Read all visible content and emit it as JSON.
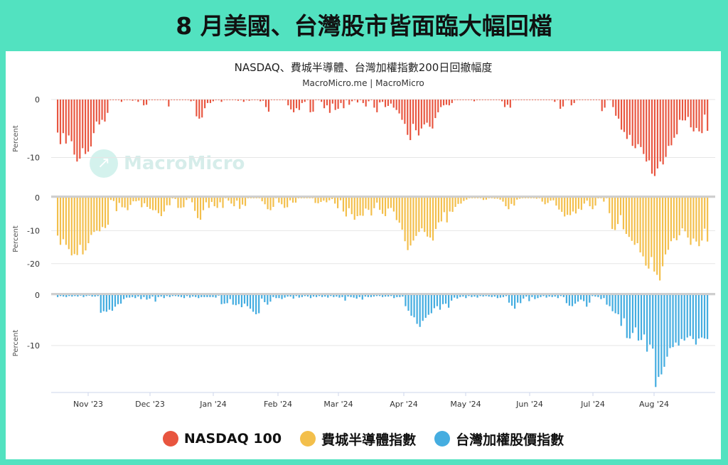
{
  "banner": {
    "title": "8 月美國、台灣股市皆面臨大幅回檔"
  },
  "chart_header": {
    "title": "NASDAQ、費城半導體、台灣加權指數200日回撤幅度",
    "source": "MacroMicro.me | MacroMicro"
  },
  "watermark": {
    "text": "MacroMicro"
  },
  "colors": {
    "nasdaq": "#e8553f",
    "sox": "#f3bf4b",
    "taiex": "#45ade0",
    "background": "#52e2c0"
  },
  "legend": [
    {
      "label": "NASDAQ 100",
      "color": "#e8553f"
    },
    {
      "label": "費城半導體指數",
      "color": "#f3bf4b"
    },
    {
      "label": "台灣加權股價指數",
      "color": "#45ade0"
    }
  ],
  "chart_data": {
    "type": "bar",
    "x_tick_labels": [
      "Nov '23",
      "Dec '23",
      "Jan '24",
      "Feb '24",
      "Mar '24",
      "Apr '24",
      "May '24",
      "Jun '24",
      "Jul '24",
      "Aug '24"
    ],
    "x_range": [
      "2023-10-13",
      "2024-08-30"
    ],
    "panels": [
      {
        "series_name": "NASDAQ 100",
        "ylabel": "Percent",
        "ylim": [
          -13.5,
          0
        ],
        "ytick_labels": [
          "0",
          "-10"
        ],
        "ytick_values": [
          0,
          -10
        ],
        "values": [
          -5.7,
          -7.7,
          -5.8,
          -7.6,
          -6.2,
          -7.2,
          -9.5,
          -10.7,
          -10.2,
          -8.4,
          -9.4,
          -9.0,
          -8.1,
          -5.8,
          -3.8,
          -4.3,
          -3.5,
          -3.8,
          -2.3,
          0,
          0,
          0,
          0,
          -0.4,
          0,
          0,
          0,
          -0.2,
          0,
          -0.4,
          0,
          -1.0,
          -0.9,
          0,
          0,
          0,
          0,
          0,
          0,
          0,
          -1.2,
          0,
          0,
          0,
          0,
          0,
          0,
          0,
          -0.3,
          -0.2,
          -2.9,
          -3.3,
          -3.1,
          -1.5,
          -0.6,
          -0.6,
          -0.3,
          0,
          0,
          -0.4,
          0,
          0,
          0,
          0,
          0,
          -0.2,
          0,
          -0.4,
          0,
          -0.2,
          0,
          0,
          -0.1,
          -0.3,
          -0.2,
          -1.3,
          -2.1,
          0,
          0,
          0,
          0,
          0,
          0,
          -1.0,
          -1.7,
          -2.2,
          -1.5,
          -1.8,
          -0.6,
          -0.4,
          0,
          -2.2,
          -2.1,
          -0.1,
          0,
          -0.4,
          -1.5,
          -1.0,
          -2.3,
          -0.7,
          -1.8,
          -1.6,
          -0.6,
          -1.5,
          0,
          -0.9,
          -0.3,
          0,
          -0.5,
          0,
          -0.6,
          -1.2,
          -0.3,
          0,
          -1.4,
          -2.2,
          -0.5,
          -0.4,
          -1.3,
          -1.1,
          -0.7,
          -1.4,
          -1.8,
          -2.4,
          -3.5,
          -4.2,
          -6.1,
          -7.0,
          -4.2,
          -5.3,
          -6.2,
          -5.0,
          -4.3,
          -4.0,
          -4.7,
          -5.0,
          -3.2,
          -2.2,
          -1.3,
          -1.0,
          -0.9,
          -1.0,
          -0.6,
          0,
          0,
          0,
          0,
          0,
          0,
          0,
          -0.3,
          0,
          0,
          0,
          0,
          0,
          0,
          0,
          0,
          0,
          -0.3,
          -1.3,
          -0.9,
          -1.4,
          0,
          0,
          0,
          0,
          0,
          0,
          0,
          0,
          0,
          0,
          0,
          0,
          0,
          0,
          0,
          -0.4,
          0,
          -1.6,
          -1.2,
          0,
          0,
          -1.0,
          -0.6,
          0,
          0,
          0,
          0,
          0,
          0,
          0,
          0,
          0,
          -2.0,
          -1.4,
          0,
          0,
          -1.3,
          -2.8,
          -3.3,
          -5.2,
          -5.6,
          -6.8,
          -6.1,
          -8.0,
          -8.4,
          -7.7,
          -8.2,
          -9.4,
          -10.7,
          -10.5,
          -12.8,
          -13.2,
          -11.9,
          -10.7,
          -11.2,
          -9.9,
          -8.0,
          -7.9,
          -6.6,
          -6.0,
          -3.5,
          -3.6,
          -3.6,
          -3.0,
          -4.8,
          -5.5,
          -4.9,
          -5.5,
          -5.8,
          -2.6,
          -5.4
        ]
      },
      {
        "series_name": "費城半導體指數",
        "ylabel": "Percent",
        "ylim": [
          -25,
          0
        ],
        "ytick_labels": [
          "0",
          "-10",
          "-20"
        ],
        "ytick_values": [
          0,
          -10,
          -20
        ],
        "values": [
          -11.5,
          -14.3,
          -12.6,
          -14.3,
          -15.6,
          -17.5,
          -17.1,
          -17.4,
          -14.3,
          -17.2,
          -16.0,
          -13.8,
          -11.3,
          -10.4,
          -10.0,
          -10.2,
          -8.9,
          -9.2,
          -8.2,
          -0.7,
          -1.0,
          -4.1,
          -1.6,
          -2.9,
          -3.0,
          -3.8,
          -2.2,
          -1.1,
          -1.1,
          -0.9,
          -2.9,
          -1.7,
          -2.8,
          -3.4,
          -3.8,
          -3.8,
          -4.7,
          -5.6,
          -4.2,
          -2.3,
          -2.3,
          -0.2,
          -0.4,
          -3.1,
          -3.1,
          -2.9,
          -0.7,
          -0.1,
          -1.4,
          -4.0,
          -6.2,
          -6.7,
          -3.8,
          -1.4,
          -3.1,
          -1.3,
          -2.6,
          -3.1,
          -1.4,
          -3.1,
          0,
          -0.9,
          -1.8,
          -2.6,
          -0.9,
          -3.4,
          -2.1,
          -2.5,
          0,
          0,
          0,
          0,
          0,
          -1.1,
          -2.0,
          -3.5,
          -3.8,
          -2.8,
          0,
          -1.5,
          -2.0,
          -3.1,
          -2.9,
          -0.8,
          -1.5,
          -1.5,
          0,
          0,
          0,
          0,
          0,
          0,
          -1.6,
          -1.7,
          -1.3,
          -0.9,
          -1.4,
          -0.8,
          -0.4,
          -1.8,
          -3.2,
          -0.8,
          -4.2,
          -5.7,
          -3.2,
          -5.0,
          -6.7,
          -5.6,
          -5.4,
          -5.5,
          -3.3,
          -3.7,
          -5.4,
          -3.2,
          -1.5,
          -3.7,
          -4.9,
          -5.6,
          -3.3,
          -3.1,
          -4.2,
          -6.8,
          -7.6,
          -9.7,
          -13.2,
          -15.9,
          -14.5,
          -13.0,
          -11.6,
          -10.4,
          -9.3,
          -10.4,
          -11.8,
          -12.1,
          -13.0,
          -9.5,
          -7.5,
          -7.2,
          -4.4,
          -7.5,
          -4.2,
          -4.3,
          -2.8,
          -1.9,
          -1.8,
          -1.0,
          -0.6,
          0,
          0,
          0,
          0,
          0,
          -0.7,
          -0.6,
          0,
          0,
          -0.3,
          -0.3,
          -0.6,
          -1.2,
          -2.6,
          -3.5,
          -1.9,
          -2.4,
          -0.6,
          -0.3,
          0,
          0,
          0,
          0,
          0,
          -0.3,
          0,
          -1.2,
          -2.0,
          -1.6,
          -0.9,
          -0.8,
          -2.4,
          -3.6,
          -4.3,
          -5.7,
          -5.2,
          -5.3,
          -4.2,
          -4.8,
          -3.4,
          -3.7,
          -1.8,
          -0.9,
          -2.6,
          -3.5,
          -2.4,
          -0.2,
          0,
          -1.2,
          0,
          -4.7,
          -9.5,
          -9.8,
          -8.0,
          -5.3,
          -9.6,
          -11.0,
          -11.9,
          -13.1,
          -14.3,
          -13.8,
          -16.6,
          -17.8,
          -20.6,
          -21.5,
          -18.0,
          -22.4,
          -23.4,
          -25.1,
          -20.8,
          -17.2,
          -15.8,
          -13.2,
          -12.3,
          -12.9,
          -11.4,
          -9.3,
          -10.2,
          -12.1,
          -14.3,
          -12.4,
          -13.3,
          -14.7,
          -13.0,
          -9.4,
          -13.3
        ]
      },
      {
        "series_name": "台灣加權股價指數",
        "ylabel": "Percent",
        "ylim": [
          -19,
          0
        ],
        "ytick_labels": [
          "0",
          "-10"
        ],
        "ytick_values": [
          0,
          -10
        ],
        "values": [
          -0.4,
          -0.2,
          -0.3,
          -0.4,
          -0.2,
          -0.3,
          -0.2,
          -0.3,
          -0.1,
          -0.4,
          -0.2,
          -0.1,
          -0.3,
          -0.3,
          -0.2,
          -3.5,
          -3.2,
          -3.3,
          -2.9,
          -3.1,
          -2.3,
          -1.8,
          -1.7,
          -0.8,
          -0.5,
          -0.5,
          -0.4,
          -0.6,
          -0.3,
          -0.8,
          -0.4,
          -0.9,
          -0.7,
          -0.3,
          -1.3,
          -0.4,
          -0.3,
          -0.6,
          -0.2,
          -0.4,
          -0.2,
          -0.2,
          -0.3,
          -0.4,
          -0.6,
          -0.2,
          -0.5,
          -0.3,
          -0.4,
          -0.6,
          -0.4,
          -0.4,
          -0.4,
          -0.4,
          -0.4,
          -0.5,
          -0.1,
          -1.8,
          -1.7,
          -1.6,
          -0.8,
          -1.9,
          -2.0,
          -1.8,
          -2.4,
          -1.7,
          -2.2,
          -2.7,
          -3.3,
          -3.8,
          -3.6,
          -0.7,
          -1.4,
          -1.9,
          -1.3,
          -0.4,
          -0.6,
          -0.6,
          -0.8,
          -0.5,
          -0.3,
          -0.3,
          -0.7,
          -0.2,
          -0.5,
          -0.4,
          -0.2,
          -0.3,
          -0.6,
          -0.3,
          -0.4,
          -0.2,
          -0.4,
          -0.3,
          -0.5,
          -0.2,
          -0.4,
          -0.3,
          -0.5,
          -0.4,
          -1.1,
          -0.3,
          -0.4,
          -0.5,
          -0.7,
          -0.4,
          -0.9,
          -0.3,
          -0.4,
          -0.4,
          -0.3,
          -0.2,
          -0.2,
          -0.4,
          -0.3,
          -0.3,
          -0.2,
          -0.6,
          -0.4,
          -0.4,
          -0.3,
          -2.2,
          -3.1,
          -4.1,
          -4.4,
          -5.7,
          -6.3,
          -5.1,
          -4.5,
          -3.9,
          -3.6,
          -2.6,
          -2.2,
          -2.9,
          -1.8,
          -1.7,
          -2.5,
          -1.1,
          -0.5,
          -0.7,
          -0.4,
          -0.3,
          -0.6,
          -0.2,
          -0.4,
          -0.3,
          -0.5,
          -0.2,
          -0.3,
          -0.2,
          -0.3,
          -0.4,
          -0.3,
          -0.6,
          -0.5,
          -0.4,
          -0.2,
          -1.5,
          -2.1,
          -2.7,
          -1.5,
          -1.6,
          -0.7,
          -0.3,
          -1.2,
          -0.4,
          -0.8,
          -0.6,
          -0.4,
          -0.2,
          -0.5,
          -0.3,
          -0.4,
          -0.3,
          -0.6,
          -0.2,
          -0.4,
          -1.6,
          -2.1,
          -2.2,
          -1.7,
          -1.3,
          -0.9,
          -1.2,
          -2.3,
          -1.5,
          -0.2,
          -0.3,
          -0.4,
          -0.8,
          -0.6,
          -1.9,
          -2.2,
          -3.2,
          -3.6,
          -3.8,
          -6.1,
          -4.6,
          -8.5,
          -8.6,
          -7.5,
          -6.4,
          -9.0,
          -8.9,
          -7.8,
          -11.2,
          -9.8,
          -10.6,
          -18.2,
          -16.2,
          -15.7,
          -14.2,
          -12.2,
          -10.5,
          -10.3,
          -9.4,
          -10.0,
          -8.7,
          -9.0,
          -8.4,
          -8.1,
          -8.7,
          -9.8,
          -8.6,
          -8.4,
          -8.6,
          -8.7
        ]
      }
    ]
  }
}
